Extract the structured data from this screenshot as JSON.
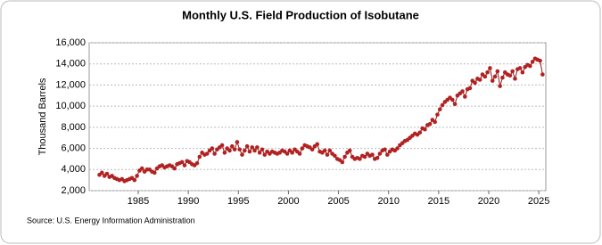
{
  "chart_data": {
    "type": "line",
    "title": "Monthly U.S. Field Production of Isobutane",
    "y_label": "Thousand Barrels",
    "source": "Source: U.S. Energy Information Administration",
    "color": "#b22222",
    "grid": true,
    "xlim": [
      1980.1,
      2025.7
    ],
    "xticks": [
      1985,
      1990,
      1995,
      2000,
      2005,
      2010,
      2015,
      2020,
      2025
    ],
    "ylim": [
      2000,
      16000
    ],
    "yticks": [
      {
        "value": 2000,
        "label": "2,000"
      },
      {
        "value": 4000,
        "label": "4,000"
      },
      {
        "value": 6000,
        "label": "6,000"
      },
      {
        "value": 8000,
        "label": "8,000"
      },
      {
        "value": 10000,
        "label": "10,000"
      },
      {
        "value": 12000,
        "label": "12,000"
      },
      {
        "value": 14000,
        "label": "14,000"
      },
      {
        "value": 16000,
        "label": "16,000"
      }
    ],
    "x": [
      1981.125,
      1981.375,
      1981.625,
      1981.875,
      1982.125,
      1982.375,
      1982.625,
      1982.875,
      1983.125,
      1983.375,
      1983.625,
      1983.875,
      1984.125,
      1984.375,
      1984.625,
      1984.875,
      1985.125,
      1985.375,
      1985.625,
      1985.875,
      1986.125,
      1986.375,
      1986.625,
      1986.875,
      1987.125,
      1987.375,
      1987.625,
      1987.875,
      1988.125,
      1988.375,
      1988.625,
      1988.875,
      1989.125,
      1989.375,
      1989.625,
      1989.875,
      1990.125,
      1990.375,
      1990.625,
      1990.875,
      1991.125,
      1991.375,
      1991.625,
      1991.875,
      1992.125,
      1992.375,
      1992.625,
      1992.875,
      1993.125,
      1993.375,
      1993.625,
      1993.875,
      1994.125,
      1994.375,
      1994.625,
      1994.875,
      1995.125,
      1995.375,
      1995.625,
      1995.875,
      1996.125,
      1996.375,
      1996.625,
      1996.875,
      1997.125,
      1997.375,
      1997.625,
      1997.875,
      1998.125,
      1998.375,
      1998.625,
      1998.875,
      1999.125,
      1999.375,
      1999.625,
      1999.875,
      2000.125,
      2000.375,
      2000.625,
      2000.875,
      2001.125,
      2001.375,
      2001.625,
      2001.875,
      2002.125,
      2002.375,
      2002.625,
      2002.875,
      2003.125,
      2003.375,
      2003.625,
      2003.875,
      2004.125,
      2004.375,
      2004.625,
      2004.875,
      2005.125,
      2005.375,
      2005.625,
      2005.875,
      2006.125,
      2006.375,
      2006.625,
      2006.875,
      2007.125,
      2007.375,
      2007.625,
      2007.875,
      2008.125,
      2008.375,
      2008.625,
      2008.875,
      2009.125,
      2009.375,
      2009.625,
      2009.875,
      2010.125,
      2010.375,
      2010.625,
      2010.875,
      2011.125,
      2011.375,
      2011.625,
      2011.875,
      2012.125,
      2012.375,
      2012.625,
      2012.875,
      2013.125,
      2013.375,
      2013.625,
      2013.875,
      2014.125,
      2014.375,
      2014.625,
      2014.875,
      2015.125,
      2015.375,
      2015.625,
      2015.875,
      2016.125,
      2016.375,
      2016.625,
      2016.875,
      2017.125,
      2017.375,
      2017.625,
      2017.875,
      2018.125,
      2018.375,
      2018.625,
      2018.875,
      2019.125,
      2019.375,
      2019.625,
      2019.875,
      2020.125,
      2020.375,
      2020.625,
      2020.875,
      2021.125,
      2021.375,
      2021.625,
      2021.875,
      2022.125,
      2022.375,
      2022.625,
      2022.875,
      2023.125,
      2023.375,
      2023.625,
      2023.875,
      2024.125,
      2024.375,
      2024.625,
      2024.875,
      2025.125,
      2025.375
    ],
    "values": [
      3500,
      3700,
      3400,
      3600,
      3300,
      3400,
      3200,
      3100,
      3000,
      3100,
      2900,
      3000,
      3100,
      3200,
      3000,
      3400,
      3900,
      4100,
      3800,
      4000,
      4000,
      3800,
      3700,
      4100,
      4300,
      4400,
      4200,
      4300,
      4400,
      4300,
      4100,
      4500,
      4600,
      4700,
      4400,
      4800,
      4700,
      4500,
      4400,
      4600,
      5200,
      5600,
      5400,
      5500,
      5800,
      6000,
      5500,
      5900,
      6100,
      6300,
      5600,
      6000,
      5800,
      6200,
      5900,
      6600,
      5900,
      5400,
      5800,
      6200,
      5700,
      6100,
      5800,
      6100,
      5600,
      5900,
      5400,
      5700,
      5500,
      5700,
      5600,
      5500,
      5600,
      5800,
      5700,
      5500,
      5800,
      5600,
      5900,
      5700,
      5500,
      6000,
      6300,
      6200,
      6100,
      5900,
      6200,
      6400,
      5700,
      5600,
      5800,
      5400,
      5800,
      5500,
      5300,
      5000,
      4900,
      4700,
      5200,
      5600,
      5800,
      5200,
      5000,
      5100,
      5000,
      5300,
      5200,
      5500,
      5300,
      5400,
      5000,
      5100,
      5500,
      5800,
      5900,
      5400,
      5700,
      5900,
      5800,
      6000,
      6300,
      6500,
      6700,
      6800,
      7000,
      7200,
      7400,
      7300,
      7500,
      7900,
      7800,
      8200,
      8300,
      8700,
      8500,
      9200,
      9700,
      10100,
      10400,
      10600,
      10800,
      10600,
      10200,
      11000,
      11200,
      11400,
      10900,
      11600,
      11700,
      12400,
      12200,
      12600,
      12500,
      13000,
      12800,
      13200,
      13600,
      12400,
      12800,
      13300,
      11900,
      12700,
      13200,
      13000,
      12900,
      13300,
      12600,
      13500,
      13600,
      13200,
      13700,
      13900,
      13800,
      14200,
      14500,
      14400,
      14300,
      13000
    ]
  }
}
